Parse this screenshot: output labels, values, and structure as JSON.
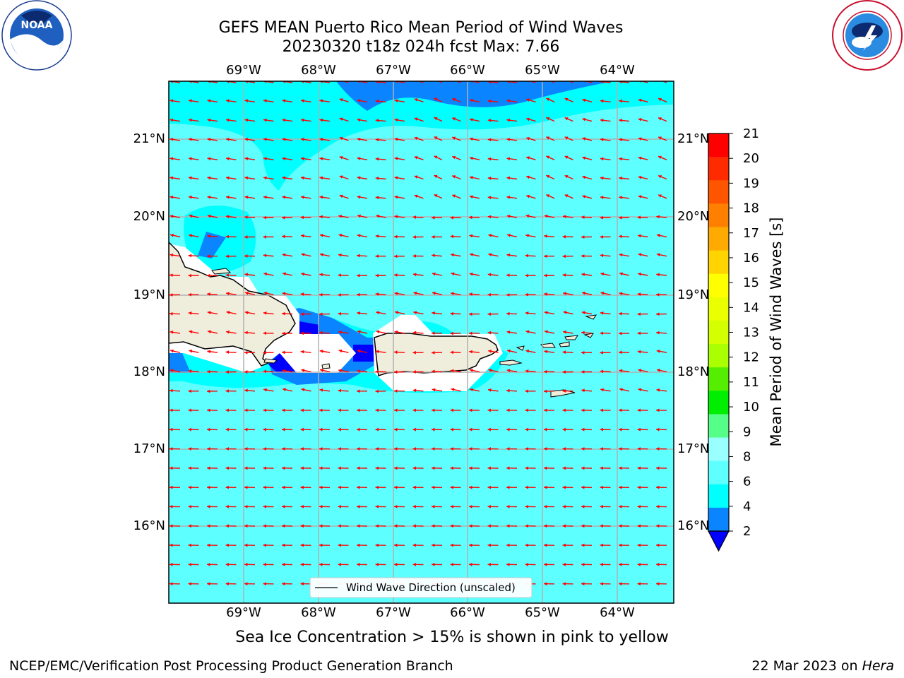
{
  "header": {
    "title_line1": "GEFS MEAN Puerto Rico Mean Period of Wind Waves",
    "title_line2": "20230320 t18z 024h fcst   Max: 7.66"
  },
  "logos": {
    "left": "NOAA",
    "right": "NATIONAL WEATHER SERVICE"
  },
  "map": {
    "lon_labels": [
      "69°W",
      "68°W",
      "67°W",
      "66°W",
      "65°W",
      "64°W"
    ],
    "lat_labels": [
      "21°N",
      "20°N",
      "19°N",
      "18°N",
      "17°N",
      "16°N"
    ],
    "legend_label": "Wind Wave Direction (unscaled)",
    "colors": {
      "sea": "#5effff",
      "cyan": "#00ffff",
      "blue": "#0a84ff",
      "deep_blue": "#0000ff",
      "land": "#efeedd",
      "arrow": "#ff0000",
      "grid": "#b0b0b0"
    }
  },
  "colorbar": {
    "title": "Mean Period of Wind Waves [s]",
    "ticks": [
      "21",
      "20",
      "19",
      "18",
      "17",
      "16",
      "15",
      "14",
      "13",
      "12",
      "11",
      "10",
      "9",
      "8",
      "6",
      "4",
      "2"
    ],
    "colors": [
      "#ff0000",
      "#ff2a00",
      "#ff5500",
      "#ff7f00",
      "#ffaa00",
      "#ffd400",
      "#ffff00",
      "#eaff00",
      "#d4ff00",
      "#aaff00",
      "#55ee00",
      "#00ee00",
      "#55ff88",
      "#99ffff",
      "#5effff",
      "#00ffff",
      "#0a84ff"
    ],
    "extend_color": "#0000ff"
  },
  "footer": {
    "ice_note": "Sea Ice Concentration > 15% is shown in pink to yellow",
    "credit": "NCEP/EMC/Verification Post Processing Product Generation Branch",
    "date": "22 Mar 2023 on ",
    "machine": "Hera"
  }
}
